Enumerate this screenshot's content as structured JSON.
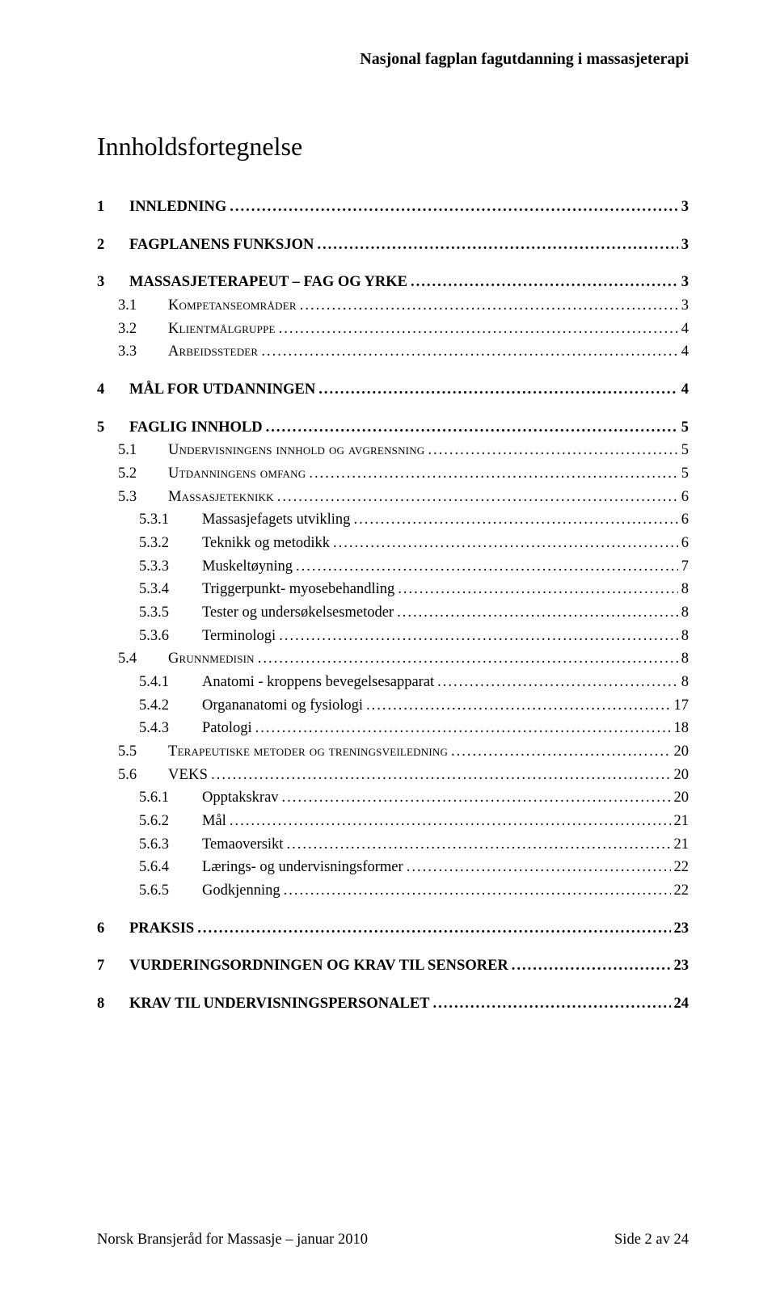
{
  "running_head": "Nasjonal fagplan fagutdanning i massasjeterapi",
  "main_heading": "Innholdsfortegnelse",
  "footer_left": "Norsk Bransjeråd for Massasje – januar 2010",
  "footer_right": "Side 2 av 24",
  "toc": [
    {
      "level": 1,
      "num": "1",
      "title": "INNLEDNING",
      "page": "3"
    },
    {
      "level": 1,
      "num": "2",
      "title": "FAGPLANENS FUNKSJON",
      "page": "3"
    },
    {
      "level": 1,
      "num": "3",
      "title": "MASSASJETERAPEUT – FAG OG YRKE",
      "page": "3"
    },
    {
      "level": 2,
      "num": "3.1",
      "title": "Kompetanseområder",
      "page": "3"
    },
    {
      "level": 2,
      "num": "3.2",
      "title": "Klientmålgruppe",
      "page": "4"
    },
    {
      "level": 2,
      "num": "3.3",
      "title": "Arbeidssteder",
      "page": "4"
    },
    {
      "level": 1,
      "num": "4",
      "title": "MÅL FOR UTDANNINGEN",
      "page": "4"
    },
    {
      "level": 1,
      "num": "5",
      "title": "FAGLIG INNHOLD",
      "page": "5"
    },
    {
      "level": 2,
      "num": "5.1",
      "title": "Undervisningens innhold og avgrensning",
      "page": "5"
    },
    {
      "level": 2,
      "num": "5.2",
      "title": "Utdanningens omfang",
      "page": "5"
    },
    {
      "level": 2,
      "num": "5.3",
      "title": "Massasjeteknikk",
      "page": "6"
    },
    {
      "level": 3,
      "num": "5.3.1",
      "title": "Massasjefagets utvikling",
      "page": "6"
    },
    {
      "level": 3,
      "num": "5.3.2",
      "title": "Teknikk og metodikk",
      "page": "6"
    },
    {
      "level": 3,
      "num": "5.3.3",
      "title": "Muskeltøyning",
      "page": "7"
    },
    {
      "level": 3,
      "num": "5.3.4",
      "title": "Triggerpunkt- myosebehandling",
      "page": "8"
    },
    {
      "level": 3,
      "num": "5.3.5",
      "title": "Tester og undersøkelsesmetoder",
      "page": "8"
    },
    {
      "level": 3,
      "num": "5.3.6",
      "title": "Terminologi",
      "page": "8"
    },
    {
      "level": 2,
      "num": "5.4",
      "title": "Grunnmedisin",
      "page": "8"
    },
    {
      "level": 3,
      "num": "5.4.1",
      "title": "Anatomi - kroppens bevegelsesapparat",
      "page": "8"
    },
    {
      "level": 3,
      "num": "5.4.2",
      "title": "Organanatomi og fysiologi",
      "page": "17"
    },
    {
      "level": 3,
      "num": "5.4.3",
      "title": "Patologi",
      "page": "18"
    },
    {
      "level": 2,
      "num": "5.5",
      "title": "Terapeutiske metoder og treningsveiledning",
      "page": "20"
    },
    {
      "level": 2,
      "num": "5.6",
      "title": "VEKS",
      "page": "20"
    },
    {
      "level": 3,
      "num": "5.6.1",
      "title": "Opptakskrav",
      "page": "20"
    },
    {
      "level": 3,
      "num": "5.6.2",
      "title": "Mål",
      "page": "21"
    },
    {
      "level": 3,
      "num": "5.6.3",
      "title": "Temaoversikt",
      "page": "21"
    },
    {
      "level": 3,
      "num": "5.6.4",
      "title": "Lærings- og undervisningsformer",
      "page": "22"
    },
    {
      "level": 3,
      "num": "5.6.5",
      "title": "Godkjenning",
      "page": "22"
    },
    {
      "level": 1,
      "num": "6",
      "title": "PRAKSIS",
      "page": "23"
    },
    {
      "level": 1,
      "num": "7",
      "title": "VURDERINGSORDNINGEN OG KRAV TIL SENSORER",
      "page": "23"
    },
    {
      "level": 1,
      "num": "8",
      "title": "KRAV TIL UNDERVISNINGSPERSONALET",
      "page": "24"
    }
  ]
}
